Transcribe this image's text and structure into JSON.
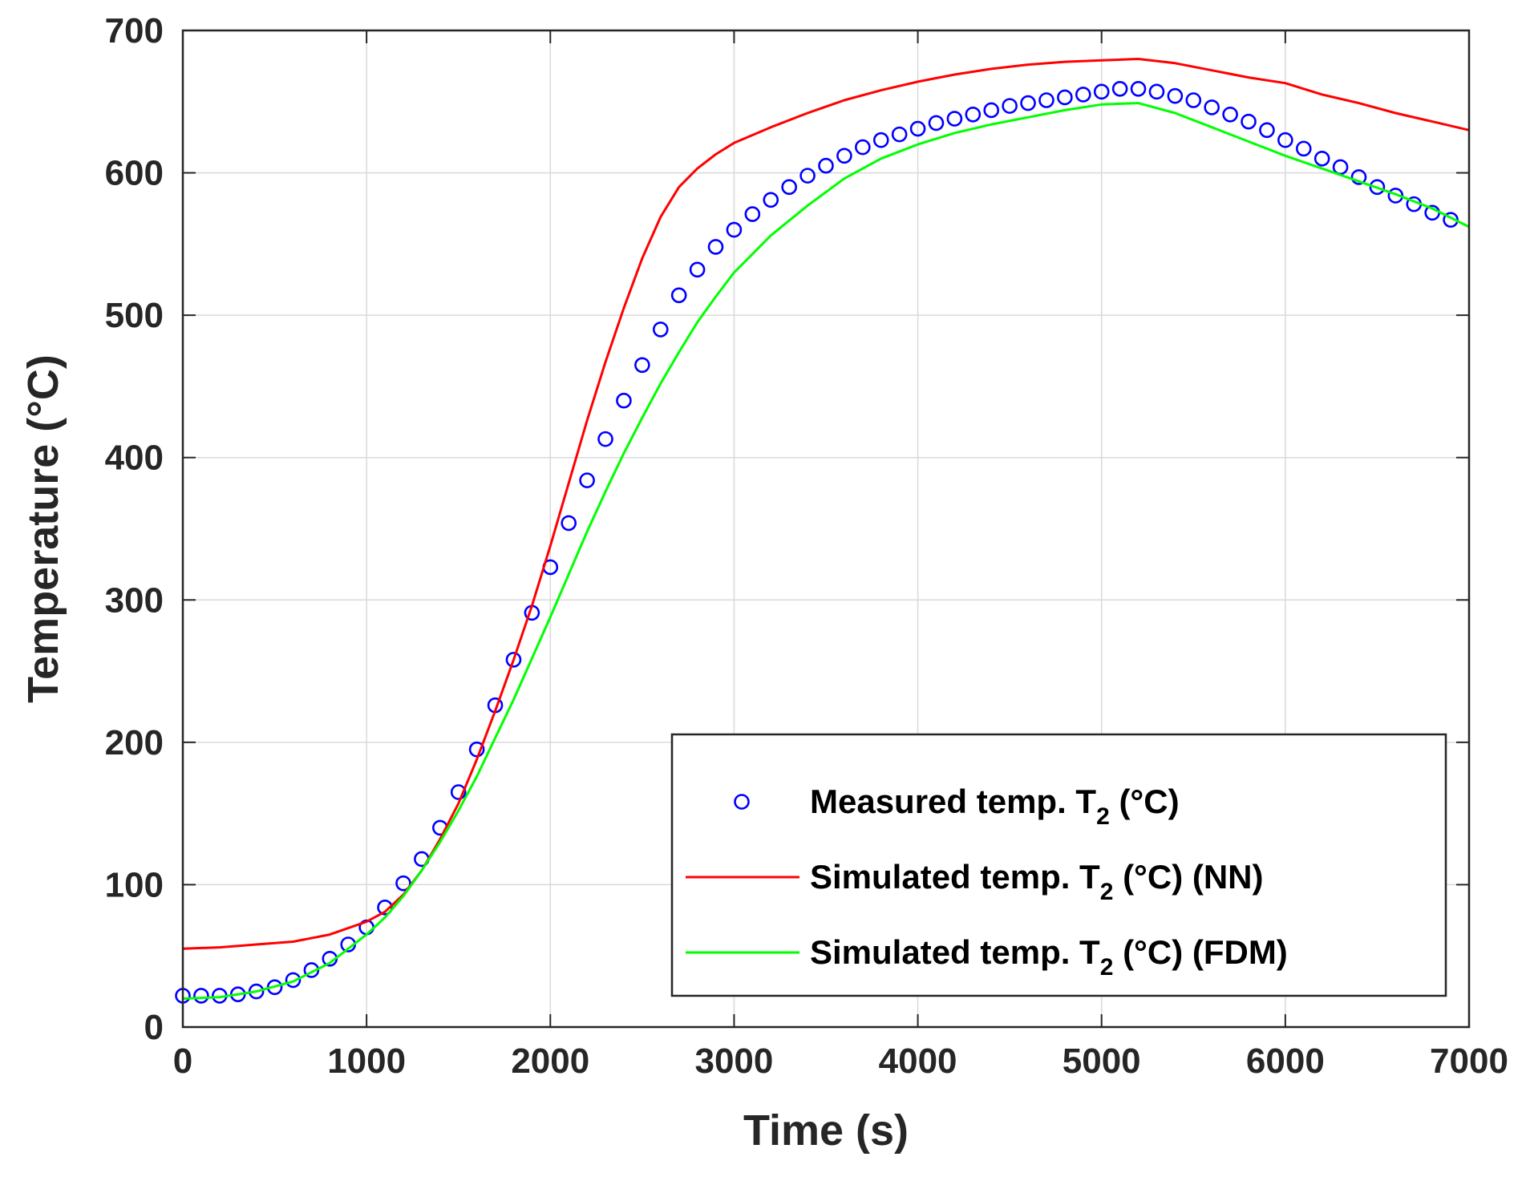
{
  "chart_data": {
    "type": "line",
    "title": "",
    "xlabel": "Time (s)",
    "ylabel": "Temperature (°C)",
    "xlim": [
      0,
      7000
    ],
    "ylim": [
      0,
      700
    ],
    "xticks": [
      0,
      1000,
      2000,
      3000,
      4000,
      5000,
      6000,
      7000
    ],
    "yticks": [
      0,
      100,
      200,
      300,
      400,
      500,
      600,
      700
    ],
    "grid": true,
    "legend_position": "bottom-right",
    "series": [
      {
        "name": "Measured temp. T2 (°C)",
        "legend_main": "Measured temp. T",
        "legend_sub": "2",
        "legend_tail": " (°C)",
        "marker": "circle",
        "color": "#0000ff",
        "x": [
          0,
          100,
          200,
          300,
          400,
          500,
          600,
          700,
          800,
          900,
          1000,
          1100,
          1200,
          1300,
          1400,
          1500,
          1600,
          1700,
          1800,
          1900,
          2000,
          2100,
          2200,
          2300,
          2400,
          2500,
          2600,
          2700,
          2800,
          2900,
          3000,
          3100,
          3200,
          3300,
          3400,
          3500,
          3600,
          3700,
          3800,
          3900,
          4000,
          4100,
          4200,
          4300,
          4400,
          4500,
          4600,
          4700,
          4800,
          4900,
          5000,
          5100,
          5200,
          5300,
          5400,
          5500,
          5600,
          5700,
          5800,
          5900,
          6000,
          6100,
          6200,
          6300,
          6400,
          6500,
          6600,
          6700,
          6800,
          6900
        ],
        "y": [
          22,
          22,
          22,
          23,
          25,
          28,
          33,
          40,
          48,
          58,
          70,
          84,
          101,
          118,
          140,
          165,
          195,
          226,
          258,
          291,
          323,
          354,
          384,
          413,
          440,
          465,
          490,
          514,
          532,
          548,
          560,
          571,
          581,
          590,
          598,
          605,
          612,
          618,
          623,
          627,
          631,
          635,
          638,
          641,
          644,
          647,
          649,
          651,
          653,
          655,
          657,
          659,
          659,
          657,
          654,
          651,
          646,
          641,
          636,
          630,
          623,
          617,
          610,
          604,
          597,
          590,
          584,
          578,
          572,
          567
        ]
      },
      {
        "name": "Simulated temp. T2 (°C) (NN)",
        "legend_main": "Simulated temp. T",
        "legend_sub": "2",
        "legend_tail": " (°C) (NN)",
        "color": "#ff0000",
        "x": [
          0,
          200,
          400,
          600,
          800,
          1000,
          1100,
          1200,
          1300,
          1400,
          1500,
          1600,
          1700,
          1800,
          1900,
          2000,
          2100,
          2200,
          2300,
          2400,
          2500,
          2600,
          2700,
          2800,
          2900,
          3000,
          3200,
          3400,
          3600,
          3800,
          4000,
          4200,
          4400,
          4600,
          4800,
          5000,
          5200,
          5400,
          5600,
          5800,
          6000,
          6200,
          6400,
          6600,
          6800,
          7000
        ],
        "y": [
          55,
          56,
          58,
          60,
          65,
          74,
          81,
          93,
          110,
          132,
          157,
          188,
          222,
          258,
          296,
          338,
          382,
          426,
          467,
          505,
          540,
          569,
          590,
          603,
          613,
          621,
          632,
          642,
          651,
          658,
          664,
          669,
          673,
          676,
          678,
          679,
          680,
          677,
          672,
          667,
          663,
          655,
          649,
          642,
          636,
          630
        ]
      },
      {
        "name": "Simulated temp. T2 (°C) (FDM)",
        "legend_main": "Simulated temp. T",
        "legend_sub": "2",
        "legend_tail": " (°C) (FDM)",
        "color": "#00ff00",
        "x": [
          0,
          200,
          400,
          600,
          800,
          1000,
          1100,
          1200,
          1300,
          1400,
          1500,
          1600,
          1700,
          1800,
          1900,
          2000,
          2100,
          2200,
          2300,
          2400,
          2500,
          2600,
          2700,
          2800,
          2900,
          3000,
          3200,
          3400,
          3600,
          3800,
          4000,
          4200,
          4400,
          4600,
          4800,
          5000,
          5200,
          5400,
          5600,
          5800,
          6000,
          6200,
          6400,
          6600,
          6800,
          7000
        ],
        "y": [
          20,
          21,
          25,
          32,
          45,
          65,
          77,
          92,
          110,
          130,
          152,
          176,
          203,
          230,
          259,
          288,
          318,
          348,
          376,
          403,
          428,
          452,
          474,
          495,
          513,
          530,
          556,
          577,
          596,
          610,
          620,
          628,
          634,
          639,
          644,
          648,
          649,
          642,
          632,
          622,
          612,
          603,
          594,
          585,
          575,
          562
        ]
      }
    ]
  }
}
